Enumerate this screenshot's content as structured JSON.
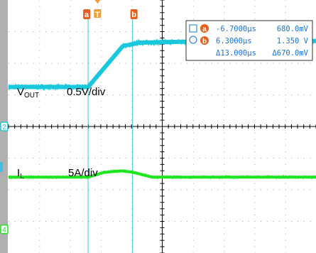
{
  "chart_data": {
    "type": "line",
    "title": "",
    "xlabel": "",
    "ylabel": "",
    "time_unit": "us",
    "xlim": [
      -30,
      60
    ],
    "ylim": [
      -4,
      4
    ],
    "channels": [
      {
        "name": "VOUT",
        "label": "V",
        "label_sub": "OUT",
        "scale_label": "0.5V/div",
        "scale_value": 0.5,
        "scale_unit": "V/div",
        "color": "#19c8dc",
        "ground_marker": "2",
        "ground_level_div": 0,
        "points": [
          {
            "t": -30,
            "div": 1.25
          },
          {
            "t": -6.7,
            "div": 1.25
          },
          {
            "t": 3.5,
            "div": 2.55
          },
          {
            "t": 6.3,
            "div": 2.6
          },
          {
            "t": 8,
            "div": 2.65
          },
          {
            "t": 30,
            "div": 2.7
          },
          {
            "t": 60,
            "div": 2.7
          }
        ],
        "noise_div": 0.1
      },
      {
        "name": "IL",
        "label": "I",
        "label_sub": "L",
        "scale_label": "5A/div",
        "scale_value": 5,
        "scale_unit": "A/div",
        "color": "#1ee61e",
        "ground_marker": "4",
        "ground_level_div": -3.25,
        "points": [
          {
            "t": -30,
            "div": -1.6
          },
          {
            "t": -6.7,
            "div": -1.6
          },
          {
            "t": -2,
            "div": -1.45
          },
          {
            "t": 3,
            "div": -1.4
          },
          {
            "t": 6.5,
            "div": -1.45
          },
          {
            "t": 12,
            "div": -1.6
          },
          {
            "t": 60,
            "div": -1.6
          }
        ],
        "noise_div": 0.05
      }
    ],
    "cursors": {
      "a": {
        "label": "a",
        "time": "-6.7000µs",
        "value": "680.0mV",
        "time_us": -6.7
      },
      "b": {
        "label": "b",
        "time": "6.3000µs",
        "value": "1.350 V",
        "time_us": 6.3
      },
      "delta_time": "Δ13.000µs",
      "delta_value": "Δ670.0mV"
    },
    "trigger": {
      "label": "T",
      "time_us": 0
    },
    "grid": true,
    "colors": {
      "cursor_orange": "#e8601c",
      "trigger_orange": "#f0a030",
      "cursor_line": "#40c0e0",
      "readout_text": "#1a73d9",
      "axis": "#000000",
      "grid_dot": "#a0a0a0",
      "left_bar": "#b0b0b0"
    }
  }
}
